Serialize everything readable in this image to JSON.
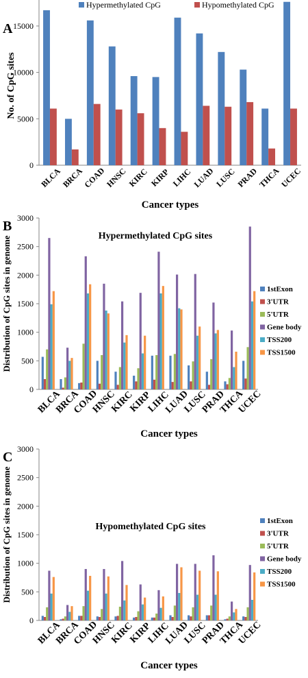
{
  "chart_data": [
    {
      "panel_label": "A",
      "type": "bar",
      "categories": [
        "BLCA",
        "BRCA",
        "COAD",
        "HNSC",
        "KIRC",
        "KIRP",
        "LIHC",
        "LUAD",
        "LUSC",
        "PRAD",
        "THCA",
        "UCEC"
      ],
      "series": [
        {
          "name": "Hypermethylated CpG",
          "color": "#4f81bd",
          "values": [
            16700,
            5000,
            15600,
            12800,
            9600,
            9500,
            15900,
            14200,
            12200,
            10300,
            6100,
            17600
          ]
        },
        {
          "name": "Hypomethylated CpG",
          "color": "#c0504d",
          "values": [
            6100,
            1700,
            6600,
            6000,
            5600,
            4000,
            3600,
            6400,
            6300,
            6800,
            1800,
            6100
          ]
        }
      ],
      "xlabel": "Cancer types",
      "ylabel": "No. of CpG sites",
      "yticks": [
        0,
        5000,
        10000,
        15000
      ],
      "ylim": [
        0,
        17800
      ],
      "legend": "top"
    },
    {
      "panel_label": "B",
      "type": "bar",
      "title": "Hypermethylated CpG sites",
      "categories": [
        "BLCA",
        "BRCA",
        "COAD",
        "HNSC",
        "KIRC",
        "KIRP",
        "LIHC",
        "LUAD",
        "LUSC",
        "PRAD",
        "THCA",
        "UCEC"
      ],
      "series": [
        {
          "name": "1stExon",
          "color": "#4f81bd",
          "values": [
            570,
            180,
            110,
            500,
            310,
            240,
            590,
            590,
            420,
            310,
            140,
            500
          ]
        },
        {
          "name": "3'UTR",
          "color": "#c0504d",
          "values": [
            180,
            30,
            120,
            100,
            80,
            140,
            170,
            130,
            140,
            80,
            90,
            190
          ]
        },
        {
          "name": "5'UTR",
          "color": "#9bbb59",
          "values": [
            700,
            210,
            800,
            600,
            390,
            370,
            600,
            620,
            490,
            530,
            200,
            740
          ]
        },
        {
          "name": "Gene body",
          "color": "#8064a2",
          "values": [
            2650,
            730,
            2330,
            1850,
            1540,
            1690,
            2410,
            2010,
            2020,
            1520,
            1030,
            2850
          ]
        },
        {
          "name": "TSS200",
          "color": "#4bacc6",
          "values": [
            1490,
            500,
            1680,
            1380,
            820,
            630,
            1680,
            1420,
            940,
            980,
            390,
            1540
          ]
        },
        {
          "name": "TSS1500",
          "color": "#f79646",
          "values": [
            1720,
            550,
            1840,
            1330,
            950,
            940,
            1810,
            1400,
            1100,
            1040,
            660,
            1720
          ]
        }
      ],
      "xlabel": "Cancer types",
      "ylabel": "Distribution of CpG sites in genome",
      "yticks": [
        0,
        500,
        1000,
        1500,
        2000,
        2500,
        3000
      ],
      "ylim": [
        0,
        3000
      ],
      "legend": "right"
    },
    {
      "panel_label": "C",
      "type": "bar",
      "title": "Hypomethylated CpG sites",
      "categories": [
        "BLCA",
        "BRCA",
        "COAD",
        "HNSC",
        "KIRC",
        "KIRP",
        "LIHC",
        "LUAD",
        "LUSC",
        "PRAD",
        "THCA",
        "UCEC"
      ],
      "series": [
        {
          "name": "1stExon",
          "color": "#4f81bd",
          "values": [
            80,
            20,
            80,
            70,
            70,
            50,
            50,
            90,
            90,
            90,
            20,
            70
          ]
        },
        {
          "name": "3'UTR",
          "color": "#c0504d",
          "values": [
            60,
            30,
            80,
            60,
            80,
            60,
            50,
            60,
            70,
            90,
            30,
            60
          ]
        },
        {
          "name": "5'UTR",
          "color": "#9bbb59",
          "values": [
            230,
            70,
            250,
            200,
            240,
            160,
            120,
            260,
            230,
            260,
            70,
            230
          ]
        },
        {
          "name": "Gene body",
          "color": "#8064a2",
          "values": [
            870,
            270,
            900,
            900,
            1040,
            630,
            530,
            990,
            990,
            1140,
            330,
            970
          ]
        },
        {
          "name": "TSS200",
          "color": "#4bacc6",
          "values": [
            470,
            150,
            520,
            470,
            350,
            280,
            220,
            480,
            450,
            450,
            140,
            360
          ]
        },
        {
          "name": "TSS1500",
          "color": "#f79646",
          "values": [
            760,
            250,
            780,
            770,
            620,
            400,
            420,
            930,
            870,
            860,
            200,
            840
          ]
        }
      ],
      "xlabel": "Cancer types",
      "ylabel": "Distribution of CpG sites in genome",
      "yticks": [
        0,
        500,
        1000,
        1500,
        2000,
        2500,
        3000
      ],
      "ylim": [
        0,
        3000
      ],
      "legend": "right"
    }
  ]
}
